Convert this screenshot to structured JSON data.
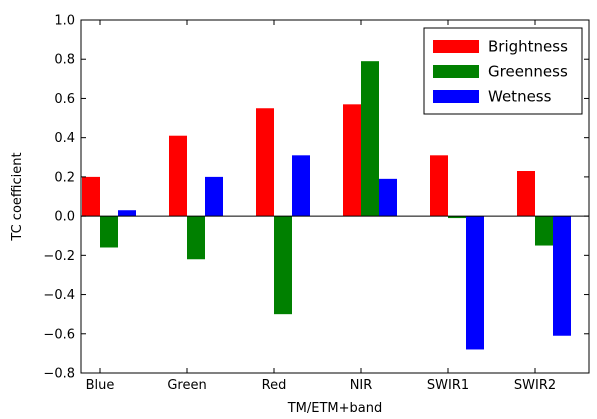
{
  "chart_data": {
    "type": "bar",
    "title": "",
    "xlabel": "TM/ETM+band",
    "ylabel": "TC coefficient",
    "categories": [
      "Blue",
      "Green",
      "Red",
      "NIR",
      "SWIR1",
      "SWIR2"
    ],
    "series": [
      {
        "name": "Brightness",
        "color": "#ff0000",
        "values": [
          0.2,
          0.41,
          0.55,
          0.57,
          0.31,
          0.23
        ]
      },
      {
        "name": "Greenness",
        "color": "#008000",
        "values": [
          -0.16,
          -0.22,
          -0.5,
          0.79,
          -0.01,
          -0.15
        ]
      },
      {
        "name": "Wetness",
        "color": "#0000ff",
        "values": [
          0.03,
          0.2,
          0.31,
          0.19,
          -0.68,
          -0.61
        ]
      }
    ],
    "ylim": [
      -0.8,
      1.0
    ],
    "yticks": [
      "−0.8",
      "−0.6",
      "−0.4",
      "−0.2",
      "0.0",
      "0.2",
      "0.4",
      "0.6",
      "0.8",
      "1.0"
    ],
    "ytick_values": [
      -0.8,
      -0.6,
      -0.4,
      -0.2,
      0.0,
      0.2,
      0.4,
      0.6,
      0.8,
      1.0
    ],
    "grid": false,
    "legend_position": "top-right"
  }
}
